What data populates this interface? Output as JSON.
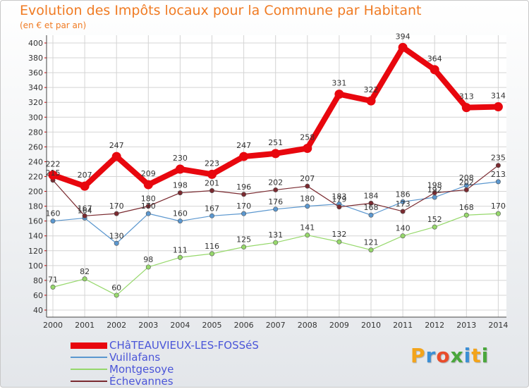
{
  "title": "Evolution des Impôts locaux pour la Commune par Habitant",
  "subtitle": "(en € et par an)",
  "logo": {
    "text": "Proxiti",
    "letter_colors": [
      "#f3a41b",
      "#3b8fd5",
      "#e94c2b",
      "#4aa73c",
      "#3b8fd5",
      "#f3a41b",
      "#4aa73c"
    ]
  },
  "chart_data": {
    "type": "line",
    "title": "Evolution des Impôts locaux pour la Commune par Habitant",
    "ylabel": "(en € et par an)",
    "xlabel": "",
    "x": [
      "2000",
      "2001",
      "2002",
      "2003",
      "2004",
      "2005",
      "2006",
      "2007",
      "2008",
      "2009",
      "2010",
      "2011",
      "2012",
      "2013",
      "2014"
    ],
    "ylim": [
      40,
      400
    ],
    "yticks": [
      40,
      60,
      80,
      100,
      120,
      140,
      160,
      180,
      200,
      220,
      240,
      260,
      280,
      300,
      320,
      340,
      360,
      380,
      400
    ],
    "grid": true,
    "legend_position": "bottom-left",
    "series": [
      {
        "name": "CHâTEAUVIEUX-LES-FOSSéS",
        "color": "#e8070e",
        "highlight": true,
        "values": [
          222,
          207,
          247,
          209,
          230,
          223,
          247,
          251,
          258,
          331,
          322,
          394,
          364,
          313,
          314
        ]
      },
      {
        "name": "Vuillafans",
        "color": "#5b97cf",
        "values": [
          160,
          164,
          130,
          170,
          160,
          167,
          170,
          176,
          180,
          183,
          168,
          186,
          192,
          208,
          213
        ]
      },
      {
        "name": "Montgesoye",
        "color": "#96d86b",
        "values": [
          71,
          82,
          60,
          98,
          111,
          116,
          125,
          131,
          141,
          132,
          121,
          140,
          152,
          168,
          170
        ]
      },
      {
        "name": "Échevannes",
        "color": "#7a2a30",
        "values": [
          215,
          167,
          170,
          180,
          198,
          201,
          196,
          202,
          207,
          179,
          184,
          173,
          198,
          202,
          235
        ]
      }
    ]
  }
}
